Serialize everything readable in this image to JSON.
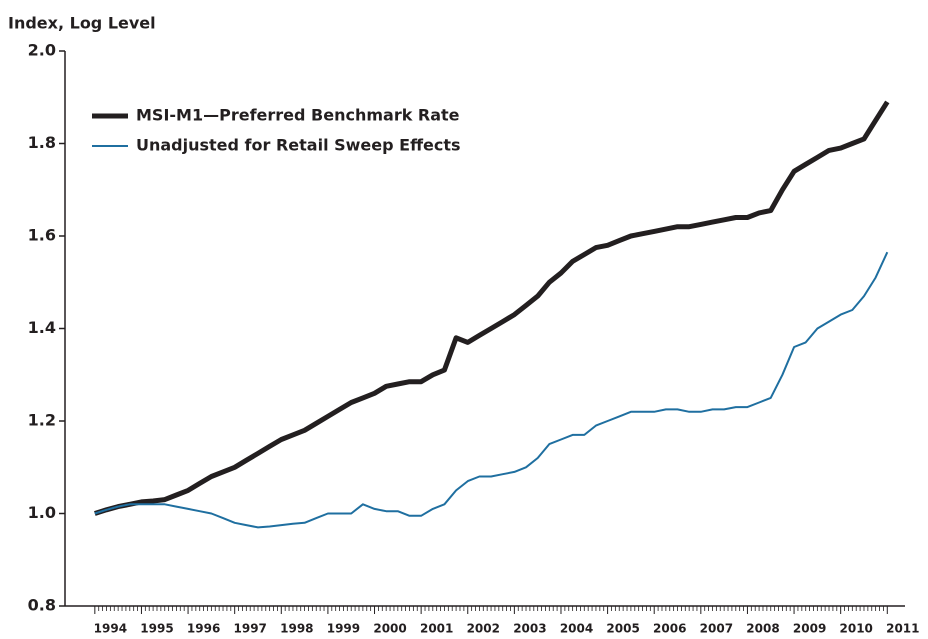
{
  "chart_data": {
    "type": "line",
    "y_label": "Index, Log Level",
    "x": [
      1994,
      1994.25,
      1994.5,
      1994.75,
      1995,
      1995.25,
      1995.5,
      1995.75,
      1996,
      1996.25,
      1996.5,
      1996.75,
      1997,
      1997.25,
      1997.5,
      1997.75,
      1998,
      1998.25,
      1998.5,
      1998.75,
      1999,
      1999.25,
      1999.5,
      1999.75,
      2000,
      2000.25,
      2000.5,
      2000.75,
      2001,
      2001.25,
      2001.5,
      2001.75,
      2002,
      2002.25,
      2002.5,
      2002.75,
      2003,
      2003.25,
      2003.5,
      2003.75,
      2004,
      2004.25,
      2004.5,
      2004.75,
      2005,
      2005.25,
      2005.5,
      2005.75,
      2006,
      2006.25,
      2006.5,
      2006.75,
      2007,
      2007.25,
      2007.5,
      2007.75,
      2008,
      2008.25,
      2008.5,
      2008.75,
      2009,
      2009.25,
      2009.5,
      2009.75,
      2010,
      2010.25,
      2010.5,
      2010.75,
      2011
    ],
    "series": [
      {
        "name": "MSI-M1—Preferred Benchmark Rate",
        "color": "#231f20",
        "width": 5,
        "values": [
          1.0,
          1.008,
          1.015,
          1.02,
          1.025,
          1.027,
          1.03,
          1.04,
          1.05,
          1.065,
          1.08,
          1.09,
          1.1,
          1.115,
          1.13,
          1.145,
          1.16,
          1.17,
          1.18,
          1.195,
          1.21,
          1.225,
          1.24,
          1.25,
          1.26,
          1.275,
          1.28,
          1.285,
          1.285,
          1.3,
          1.31,
          1.38,
          1.37,
          1.385,
          1.4,
          1.415,
          1.43,
          1.45,
          1.47,
          1.5,
          1.52,
          1.545,
          1.56,
          1.575,
          1.58,
          1.59,
          1.6,
          1.605,
          1.61,
          1.615,
          1.62,
          1.62,
          1.625,
          1.63,
          1.635,
          1.64,
          1.64,
          1.65,
          1.655,
          1.7,
          1.74,
          1.755,
          1.77,
          1.785,
          1.79,
          1.8,
          1.81,
          1.85,
          1.89
        ]
      },
      {
        "name": "Unadjusted for Retail Sweep Effects",
        "color": "#1f6fa0",
        "width": 2,
        "values": [
          1.0,
          1.008,
          1.015,
          1.02,
          1.02,
          1.02,
          1.02,
          1.015,
          1.01,
          1.005,
          1.0,
          0.99,
          0.98,
          0.975,
          0.97,
          0.972,
          0.975,
          0.978,
          0.98,
          0.99,
          1.0,
          1.0,
          1.0,
          1.02,
          1.01,
          1.005,
          1.005,
          0.995,
          0.995,
          1.01,
          1.02,
          1.05,
          1.07,
          1.08,
          1.08,
          1.085,
          1.09,
          1.1,
          1.12,
          1.15,
          1.16,
          1.17,
          1.17,
          1.19,
          1.2,
          1.21,
          1.22,
          1.22,
          1.22,
          1.225,
          1.225,
          1.22,
          1.22,
          1.225,
          1.225,
          1.23,
          1.23,
          1.24,
          1.25,
          1.3,
          1.36,
          1.37,
          1.4,
          1.415,
          1.43,
          1.44,
          1.47,
          1.51,
          1.565
        ]
      }
    ],
    "xlim": [
      1993.36,
      2011.38
    ],
    "xticks": [
      1994,
      1995,
      1996,
      1997,
      1998,
      1999,
      2000,
      2001,
      2002,
      2003,
      2004,
      2005,
      2006,
      2007,
      2008,
      2009,
      2010,
      2011
    ],
    "ylim": [
      0.8,
      2.0
    ],
    "yticks": [
      0.8,
      {
        "value": 1,
        "label": "1.0"
      },
      1.2,
      1.4,
      1.6,
      1.8,
      {
        "value": 2,
        "label": "2.0"
      }
    ],
    "grid": false,
    "legend": "upper left"
  }
}
